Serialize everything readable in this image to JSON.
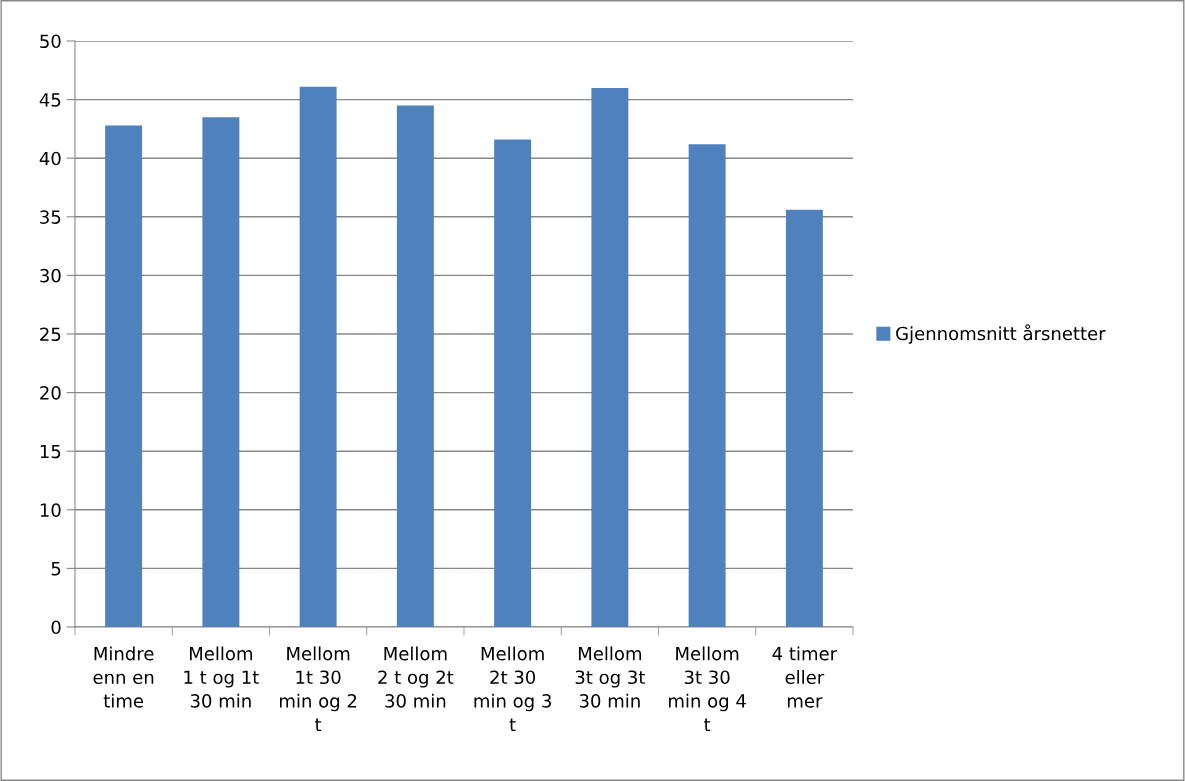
{
  "chart_data": {
    "type": "bar",
    "categories": [
      "Mindre\nenn en\ntime",
      "Mellom\n1 t og 1t\n30 min",
      "Mellom\n1t 30\nmin og 2\nt",
      "Mellom\n2 t og 2t\n30 min",
      "Mellom\n2t 30\nmin og 3\nt",
      "Mellom\n3t og 3t\n30 min",
      "Mellom\n3t 30\nmin og 4\nt",
      "4 timer\neller\nmer"
    ],
    "series": [
      {
        "name": "Gjennomsnitt årsnetter",
        "color": "#4f81bd",
        "values": [
          42.8,
          43.5,
          46.1,
          44.5,
          41.6,
          46.0,
          41.2,
          35.6
        ]
      }
    ],
    "ylim": [
      0,
      50
    ],
    "yticks": [
      0,
      5,
      10,
      15,
      20,
      25,
      30,
      35,
      40,
      45,
      50
    ],
    "grid": "y",
    "legend": "right"
  }
}
